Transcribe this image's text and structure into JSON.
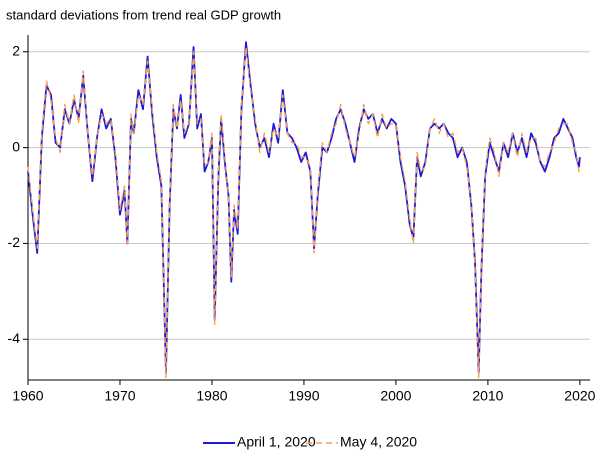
{
  "chart_data": {
    "type": "line",
    "title": "standard deviations from trend real GDP growth",
    "x": [
      1960,
      1960.5,
      1961,
      1961.5,
      1962,
      1962.5,
      1963,
      1963.5,
      1964,
      1964.5,
      1965,
      1965.5,
      1966,
      1966.5,
      1967,
      1967.5,
      1968,
      1968.5,
      1969,
      1969.5,
      1970,
      1970.5,
      1970.8,
      1971.2,
      1971.5,
      1972,
      1972.5,
      1973,
      1973.5,
      1974,
      1974.5,
      1975,
      1975.4,
      1975.8,
      1976.2,
      1976.6,
      1977,
      1977.5,
      1978,
      1978.4,
      1978.8,
      1979.2,
      1979.6,
      1980,
      1980.3,
      1980.7,
      1981,
      1981.4,
      1981.8,
      1982.1,
      1982.4,
      1982.8,
      1983.2,
      1983.7,
      1984.2,
      1984.7,
      1985.2,
      1985.7,
      1986.2,
      1986.7,
      1987.2,
      1987.7,
      1988.2,
      1988.7,
      1989.2,
      1989.7,
      1990.2,
      1990.7,
      1991.1,
      1991.5,
      1992,
      1992.5,
      1993,
      1993.5,
      1994,
      1994.5,
      1995,
      1995.5,
      1996,
      1996.5,
      1997,
      1997.5,
      1998,
      1998.5,
      1999,
      1999.5,
      2000,
      2000.5,
      2001,
      2001.5,
      2001.9,
      2002.3,
      2002.7,
      2003.2,
      2003.7,
      2004.2,
      2004.7,
      2005.2,
      2005.7,
      2006.2,
      2006.7,
      2007.2,
      2007.7,
      2008.2,
      2008.6,
      2009,
      2009.3,
      2009.7,
      2010.2,
      2010.7,
      2011.2,
      2011.7,
      2012.2,
      2012.7,
      2013.2,
      2013.7,
      2014.2,
      2014.7,
      2015.2,
      2015.7,
      2016.2,
      2016.7,
      2017.2,
      2017.7,
      2018.2,
      2018.7,
      2019.2,
      2019.6,
      2019.9,
      2020
    ],
    "series": [
      {
        "name": "April 1, 2020",
        "color": "#1a1adf",
        "dashed": false,
        "values": [
          -0.5,
          -1.4,
          -2.2,
          0.2,
          1.3,
          1.1,
          0.1,
          0.0,
          0.8,
          0.5,
          1.0,
          0.6,
          1.5,
          0.3,
          -0.7,
          0.2,
          0.8,
          0.4,
          0.6,
          -0.2,
          -1.4,
          -0.9,
          -2.0,
          0.6,
          0.3,
          1.2,
          0.8,
          1.9,
          0.7,
          -0.2,
          -0.8,
          -4.7,
          -1.2,
          0.8,
          0.4,
          1.1,
          0.2,
          0.5,
          2.1,
          0.4,
          0.7,
          -0.5,
          -0.3,
          0.2,
          -3.6,
          -0.6,
          0.6,
          -0.3,
          -1.0,
          -2.8,
          -1.3,
          -1.8,
          0.8,
          2.2,
          1.3,
          0.5,
          0.0,
          0.2,
          -0.2,
          0.5,
          0.1,
          1.2,
          0.3,
          0.2,
          0.0,
          -0.3,
          -0.1,
          -0.5,
          -2.1,
          -1.0,
          0.0,
          -0.1,
          0.2,
          0.6,
          0.8,
          0.5,
          0.1,
          -0.3,
          0.4,
          0.8,
          0.6,
          0.7,
          0.3,
          0.6,
          0.4,
          0.6,
          0.5,
          -0.3,
          -0.8,
          -1.6,
          -1.9,
          -0.2,
          -0.6,
          -0.3,
          0.4,
          0.5,
          0.4,
          0.5,
          0.3,
          0.2,
          -0.2,
          0.0,
          -0.3,
          -1.2,
          -2.4,
          -4.7,
          -2.5,
          -0.6,
          0.1,
          -0.2,
          -0.5,
          0.1,
          -0.2,
          0.3,
          -0.1,
          0.2,
          -0.2,
          0.3,
          0.1,
          -0.3,
          -0.5,
          -0.2,
          0.2,
          0.3,
          0.6,
          0.4,
          0.2,
          -0.2,
          -0.4,
          -0.2
        ]
      },
      {
        "name": "May 4, 2020",
        "color": "#f4a050",
        "dashed": true,
        "values": [
          -0.4,
          -1.3,
          -2.1,
          0.3,
          1.4,
          1.0,
          0.2,
          -0.1,
          0.9,
          0.5,
          1.1,
          0.5,
          1.6,
          0.3,
          -0.6,
          0.2,
          0.7,
          0.5,
          0.6,
          -0.1,
          -1.3,
          -0.8,
          -2.0,
          0.7,
          0.3,
          1.1,
          0.9,
          1.8,
          0.8,
          -0.1,
          -0.7,
          -4.8,
          -1.1,
          0.9,
          0.4,
          1.0,
          0.3,
          0.5,
          2.0,
          0.5,
          0.6,
          -0.4,
          -0.3,
          0.3,
          -3.7,
          -0.5,
          0.7,
          -0.2,
          -1.0,
          -2.7,
          -1.2,
          -1.7,
          0.9,
          2.1,
          1.2,
          0.6,
          -0.1,
          0.3,
          -0.1,
          0.4,
          0.2,
          1.1,
          0.3,
          0.1,
          0.1,
          -0.2,
          -0.2,
          -0.4,
          -2.2,
          -0.9,
          0.1,
          -0.1,
          0.3,
          0.5,
          0.9,
          0.4,
          0.1,
          -0.2,
          0.3,
          0.9,
          0.5,
          0.7,
          0.2,
          0.7,
          0.4,
          0.5,
          0.5,
          -0.2,
          -0.7,
          -1.5,
          -2.0,
          -0.1,
          -0.5,
          -0.4,
          0.4,
          0.6,
          0.3,
          0.5,
          0.2,
          0.3,
          -0.1,
          0.0,
          -0.4,
          -1.1,
          -2.5,
          -4.8,
          -2.4,
          -0.5,
          0.2,
          -0.1,
          -0.6,
          0.1,
          -0.1,
          0.3,
          -0.2,
          0.3,
          -0.1,
          0.2,
          0.2,
          -0.3,
          -0.4,
          -0.1,
          0.1,
          0.4,
          0.5,
          0.5,
          0.1,
          -0.1,
          -0.5,
          -0.5
        ]
      }
    ],
    "xlim": [
      1960,
      2021.1
    ],
    "ylim": [
      -4.85,
      2.35
    ],
    "xticks": [
      1960,
      1970,
      1980,
      1990,
      2000,
      2010,
      2020
    ],
    "yticks": [
      -4,
      -2,
      0,
      2
    ],
    "grid": true,
    "legend": "bottom"
  }
}
